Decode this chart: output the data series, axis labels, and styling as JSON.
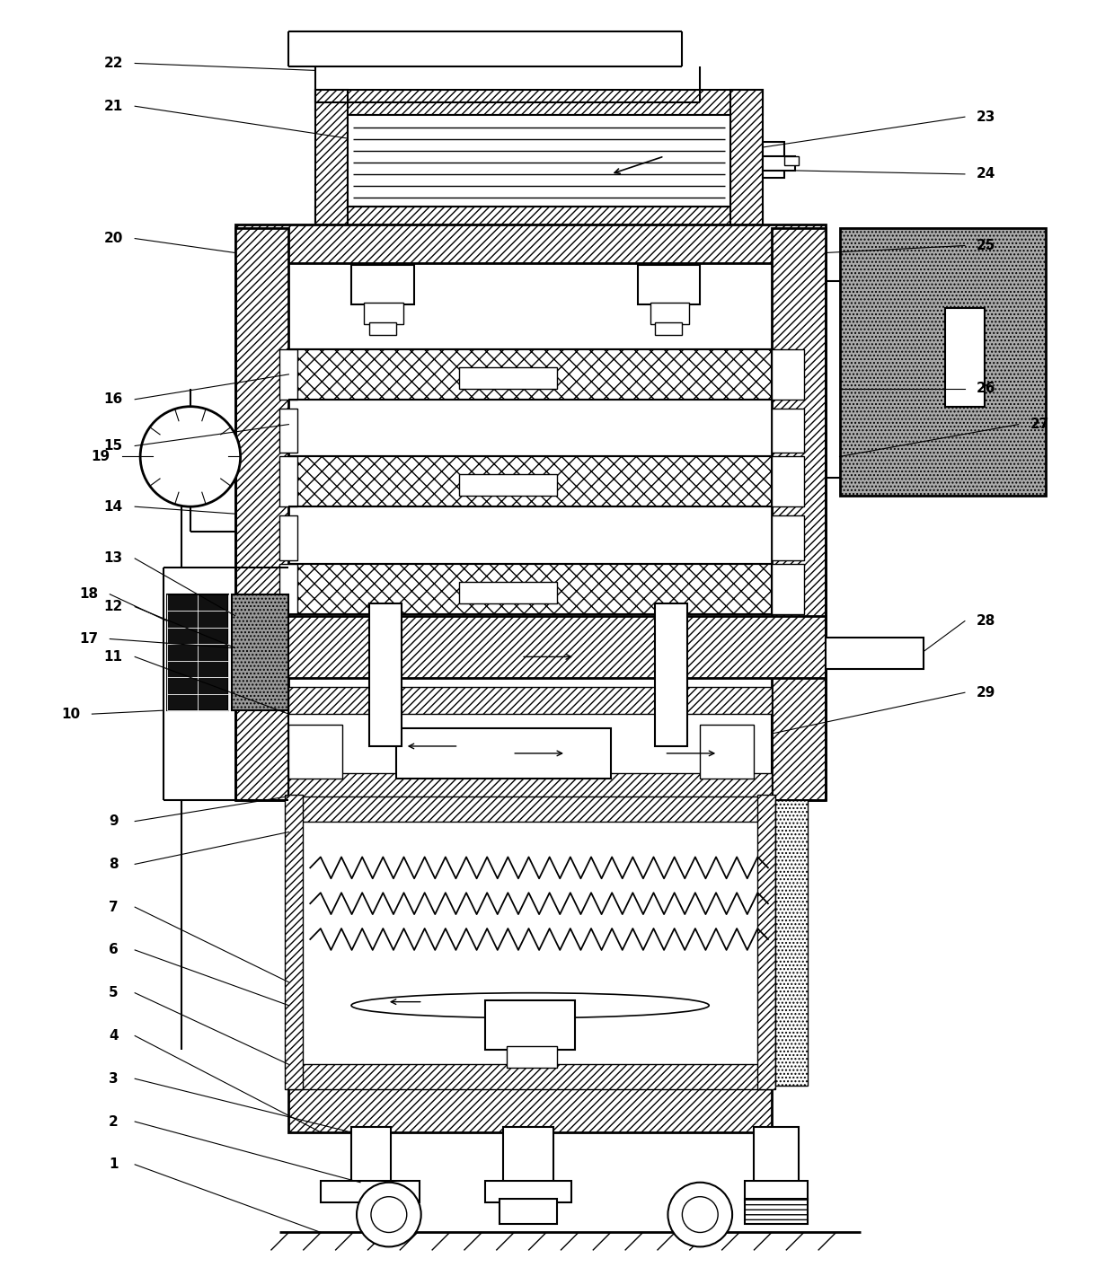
{
  "bg_color": "#ffffff",
  "line_color": "#000000",
  "fig_width": 12.4,
  "fig_height": 14.31,
  "dpi": 100
}
